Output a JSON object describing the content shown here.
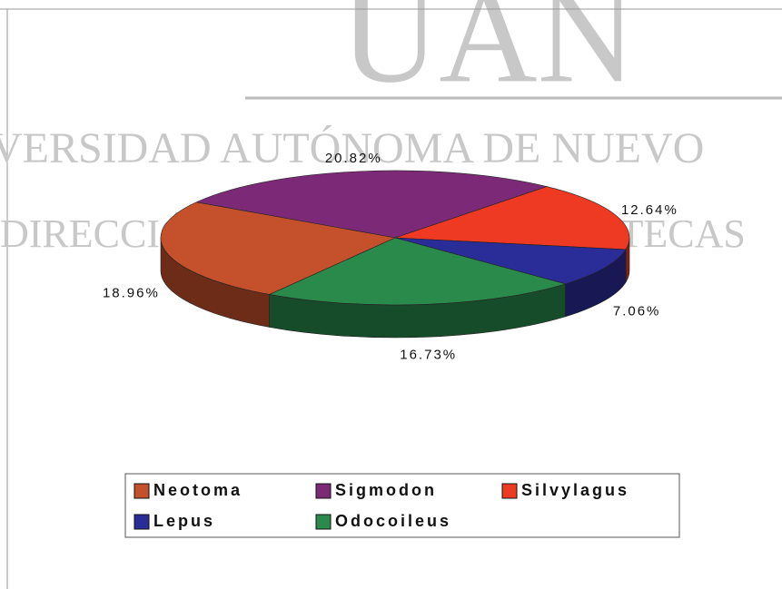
{
  "chart_data": {
    "type": "pie",
    "watermark": [
      "UAN",
      "VERSIDAD AUTÓNOMA DE NUEVO",
      "DIRECCIÓN GENERAL DE BIBLIOTECAS"
    ],
    "categories": [
      "Neotoma",
      "Sigmodon",
      "Silvylagus",
      "Lepus",
      "Odocoileus"
    ],
    "values": [
      18.96,
      20.82,
      12.64,
      7.06,
      16.73
    ],
    "value_labels": [
      "18.96%",
      "20.82%",
      "12.64%",
      "7.06%",
      "16.73%"
    ],
    "colors": [
      "#c4502c",
      "#7c2a78",
      "#ee3a22",
      "#2a2c98",
      "#2a8a4c"
    ],
    "legend": "bottom"
  }
}
